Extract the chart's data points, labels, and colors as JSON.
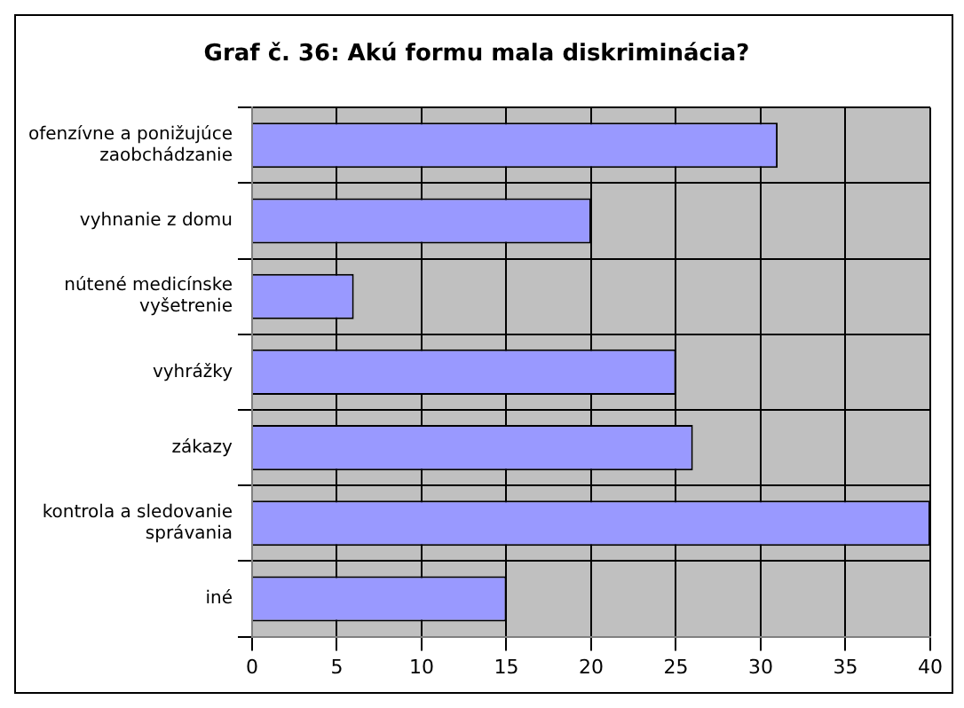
{
  "chart_data": {
    "type": "bar",
    "orientation": "horizontal",
    "title": "Graf č. 36: Akú formu mala diskriminácia?",
    "categories": [
      "ofenzívne a ponižujúce zaobchádzanie",
      "vyhnanie z domu",
      "nútené medicínske vyšetrenie",
      "vyhrážky",
      "zákazy",
      "kontrola a sledovanie správania",
      "iné"
    ],
    "values": [
      31,
      20,
      6,
      25,
      26,
      40,
      15
    ],
    "color": "#9999ff",
    "xlim": [
      0,
      40
    ],
    "xticks": [
      0,
      5,
      10,
      15,
      20,
      25,
      30,
      35,
      40
    ],
    "grid": true,
    "legend": false
  }
}
